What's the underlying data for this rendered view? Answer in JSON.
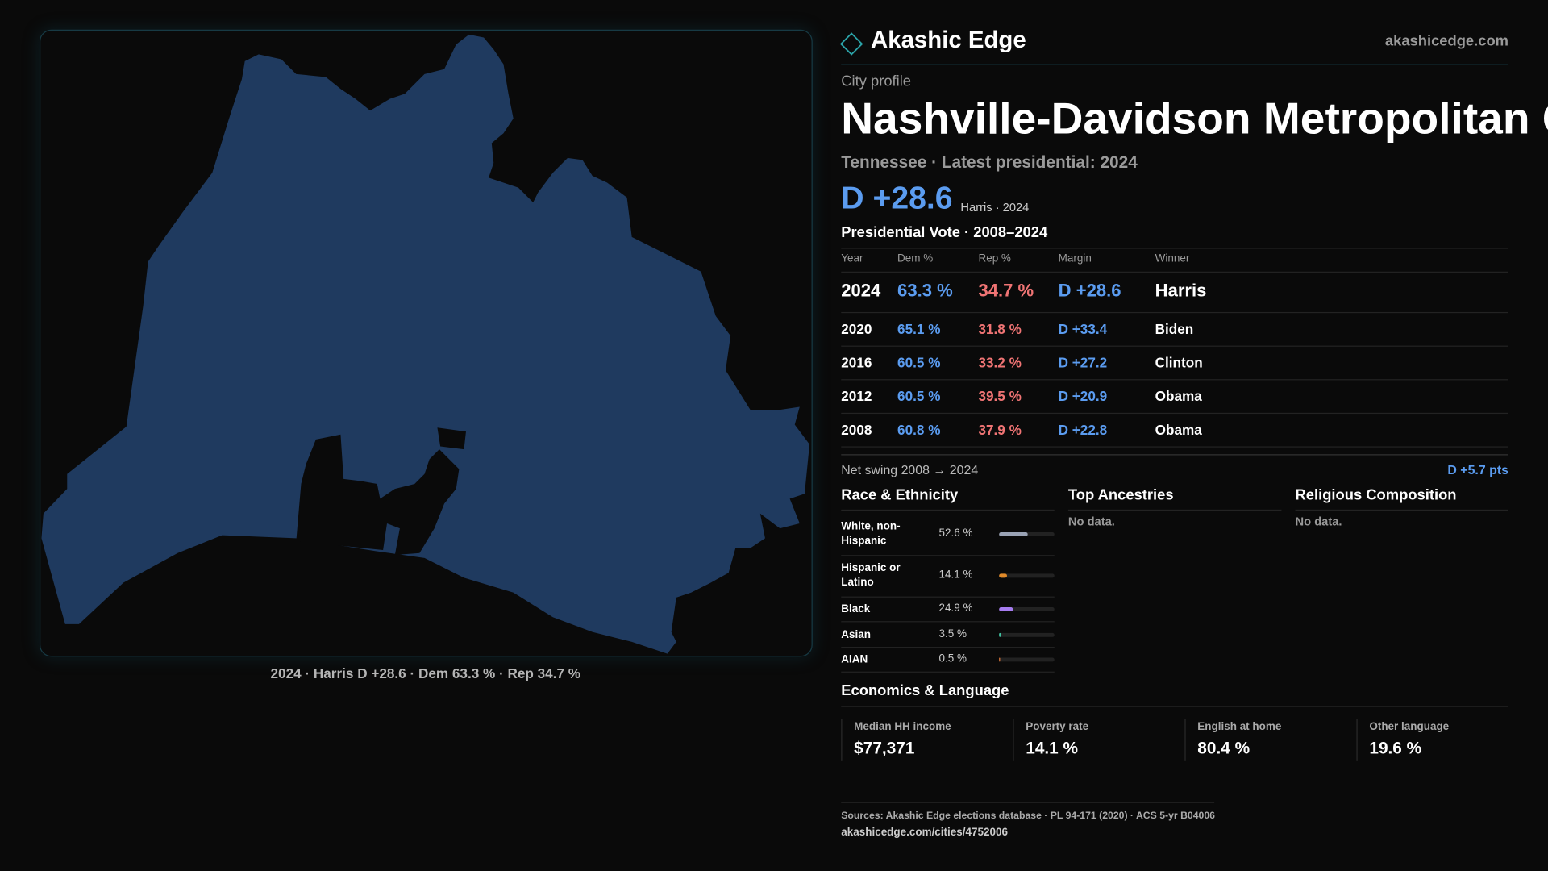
{
  "header": {
    "brand": "Akashic Edge",
    "site": "akashicedge.com"
  },
  "map": {
    "caption": "2024 · Harris D +28.6 · Dem 63.3 % · Rep 34.7 %"
  },
  "profile": {
    "kicker": "City profile",
    "title": "Nashville-Davidson Metropolitan G",
    "subtitle": "Tennessee · Latest presidential: 2024",
    "margin": "D +28.6",
    "margin_note": "Harris · 2024"
  },
  "vote_table": {
    "title": "Presidential Vote · 2008–2024",
    "columns": [
      "Year",
      "Dem %",
      "Rep %",
      "Margin",
      "Winner"
    ],
    "rows": [
      [
        "2024",
        "63.3 %",
        "34.7 %",
        "D +28.6",
        "Harris"
      ],
      [
        "2020",
        "65.1 %",
        "31.8 %",
        "D +33.4",
        "Biden"
      ],
      [
        "2016",
        "60.5 %",
        "33.2 %",
        "D +27.2",
        "Clinton"
      ],
      [
        "2012",
        "60.5 %",
        "39.5 %",
        "D +20.9",
        "Obama"
      ],
      [
        "2008",
        "60.8 %",
        "37.9 %",
        "D +22.8",
        "Obama"
      ]
    ]
  },
  "net_swing": {
    "label": "Net swing 2008 → 2024",
    "value": "D +5.7 pts"
  },
  "race": {
    "title": "Race & Ethnicity",
    "rows": [
      {
        "label": "White, non-Hispanic",
        "pct": "52.6 %",
        "color": "#9aa3b5"
      },
      {
        "label": "Hispanic or Latino",
        "pct": "14.1 %",
        "color": "#e08a2a"
      },
      {
        "label": "Black",
        "pct": "24.9 %",
        "color": "#a67cf0"
      },
      {
        "label": "Asian",
        "pct": "3.5 %",
        "color": "#3fc1a0"
      },
      {
        "label": "AIAN",
        "pct": "0.5 %",
        "color": "#e0783a"
      }
    ]
  },
  "ancestries": {
    "title": "Top Ancestries",
    "note": "No data."
  },
  "religion": {
    "title": "Religious Composition",
    "note": "No data."
  },
  "economics": {
    "title": "Economics & Language",
    "stats": [
      {
        "label": "Median HH income",
        "value": "$77,371"
      },
      {
        "label": "Poverty rate",
        "value": "14.1 %"
      },
      {
        "label": "English at home",
        "value": "80.4 %"
      },
      {
        "label": "Other language",
        "value": "19.6 %"
      }
    ]
  },
  "footer": {
    "sources": "Sources: Akashic Edge elections database · PL 94-171 (2020) · ACS 5-yr B04006",
    "url": "akashicedge.com/cities/4752006"
  }
}
